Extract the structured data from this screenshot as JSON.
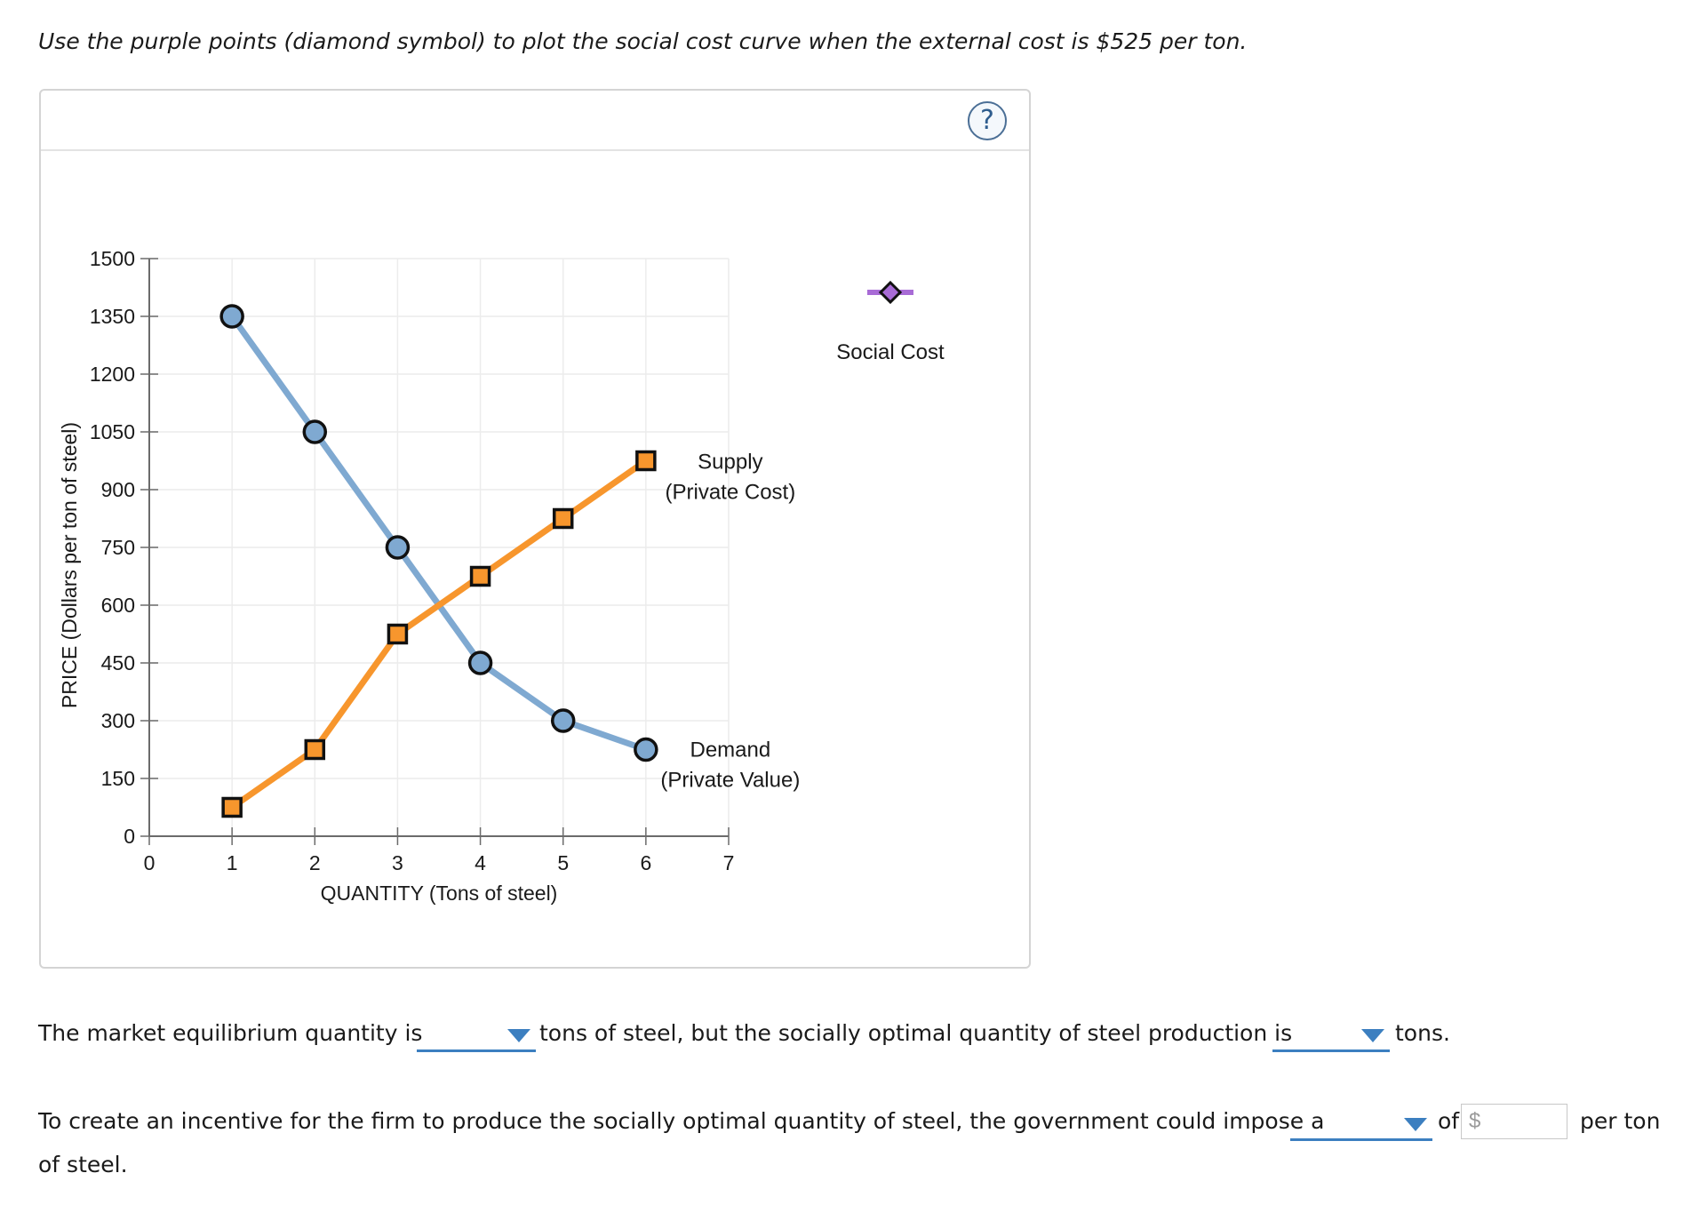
{
  "prompt": "Use the purple points (diamond symbol) to plot the social cost curve when the external cost is $525 per ton.",
  "help": {
    "symbol": "?"
  },
  "chart_data": {
    "type": "line",
    "xlabel": "QUANTITY (Tons of steel)",
    "ylabel": "PRICE (Dollars per ton of steel)",
    "xlim": [
      0,
      7
    ],
    "ylim": [
      0,
      1500
    ],
    "x_ticks": [
      0,
      1,
      2,
      3,
      4,
      5,
      6,
      7
    ],
    "y_ticks": [
      0,
      150,
      300,
      450,
      600,
      750,
      900,
      1050,
      1200,
      1350,
      1500
    ],
    "grid": true,
    "series": [
      {
        "name": "Demand (Private Value)",
        "label_lines": [
          "Demand",
          "(Private Value)"
        ],
        "marker": "circle",
        "color": "#7fa9d1",
        "marker_fill": "#7fa9d1",
        "x": [
          1,
          2,
          3,
          4,
          5,
          6
        ],
        "y": [
          1350,
          1050,
          750,
          450,
          300,
          225
        ]
      },
      {
        "name": "Supply (Private Cost)",
        "label_lines": [
          "Supply",
          "(Private Cost)"
        ],
        "marker": "square",
        "color": "#f7962d",
        "marker_fill": "#f7962d",
        "x": [
          1,
          2,
          3,
          4,
          5,
          6
        ],
        "y": [
          75,
          225,
          525,
          675,
          825,
          975
        ]
      }
    ],
    "palette_tool": {
      "name": "Social Cost",
      "marker": "diamond",
      "color": "#a86bd6",
      "line_color": "#a86bd6"
    }
  },
  "questions": {
    "q1_part1": "The market equilibrium quantity is",
    "q1_part2": "tons of steel, but the socially optimal quantity of steel production is",
    "q1_part3": "tons.",
    "q2_part1": "To create an incentive for the firm to produce the socially optimal quantity of steel, the government could impose a",
    "q2_of": "of",
    "q2_dollar": "$",
    "q2_part2": "per ton",
    "q2_part3": "of steel.",
    "dropdown_1_value": "",
    "dropdown_2_value": "",
    "dropdown_3_value": "",
    "amount_value": ""
  }
}
